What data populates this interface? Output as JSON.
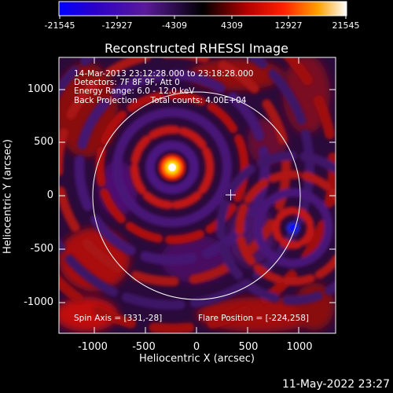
{
  "colorbar": {
    "tick_labels": [
      "-21545",
      "-12927",
      "-4309",
      "4309",
      "12927",
      "21545"
    ],
    "colors": [
      "#0000ff",
      "#2a00c8",
      "#5a1a9a",
      "#000000",
      "#b00000",
      "#ff2000",
      "#ffa000",
      "#ffffff"
    ]
  },
  "plot": {
    "title": "Reconstructed RHESSI Image",
    "info_lines": [
      "14-Mar-2013 23:12:28.000 to 23:18:28.000",
      "Detectors: 7F 8F 9F, Att 0",
      "Energy Range: 6.0 - 12.0 keV",
      "Back Projection     Total counts: 4.00E+04"
    ],
    "spin_axis": "Spin Axis = [331,-28]",
    "flare_position": "Flare Position = [-224,258]",
    "x_axis_label": "Heliocentric X (arcsec)",
    "y_axis_label": "Heliocentric Y (arcsec)",
    "x_tick_labels": [
      "-1000",
      "-500",
      "0",
      "500",
      "1000"
    ],
    "y_tick_labels": [
      "1000",
      "500",
      "0",
      "-500",
      "-1000"
    ]
  },
  "timestamp": "11-May-2022 23:27"
}
